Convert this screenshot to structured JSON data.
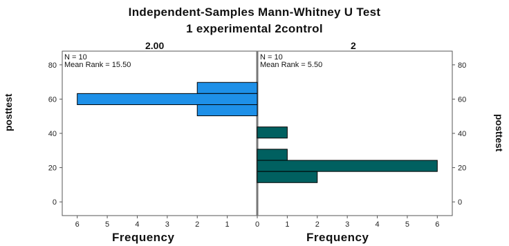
{
  "chart_data": {
    "type": "bar",
    "title": "Independent-Samples Mann-Whitney U Test",
    "subtitle": "1 experimental 2control",
    "ylabel": "posttest",
    "xlabel": "Frequency",
    "ylim": [
      -8,
      88
    ],
    "yticks": [
      0,
      20,
      40,
      60,
      80
    ],
    "xlim": [
      0,
      6.5
    ],
    "xticks": [
      0,
      1,
      2,
      3,
      4,
      5,
      6
    ],
    "bin_width": 6.5,
    "groups": [
      {
        "label": "2.00",
        "n_label": "N = 10",
        "mean_rank_label": "Mean Rank = 15.50",
        "color": "#1e90e8",
        "bins": [
          {
            "y": 66.5,
            "count": 2
          },
          {
            "y": 60.0,
            "count": 6
          },
          {
            "y": 53.5,
            "count": 2
          }
        ]
      },
      {
        "label": "2",
        "n_label": "N = 10",
        "mean_rank_label": "Mean Rank = 5.50",
        "color": "#006060",
        "bins": [
          {
            "y": 40.5,
            "count": 1
          },
          {
            "y": 34.0,
            "count": 0
          },
          {
            "y": 27.5,
            "count": 1
          },
          {
            "y": 21.0,
            "count": 6
          },
          {
            "y": 14.5,
            "count": 2
          }
        ]
      }
    ]
  }
}
